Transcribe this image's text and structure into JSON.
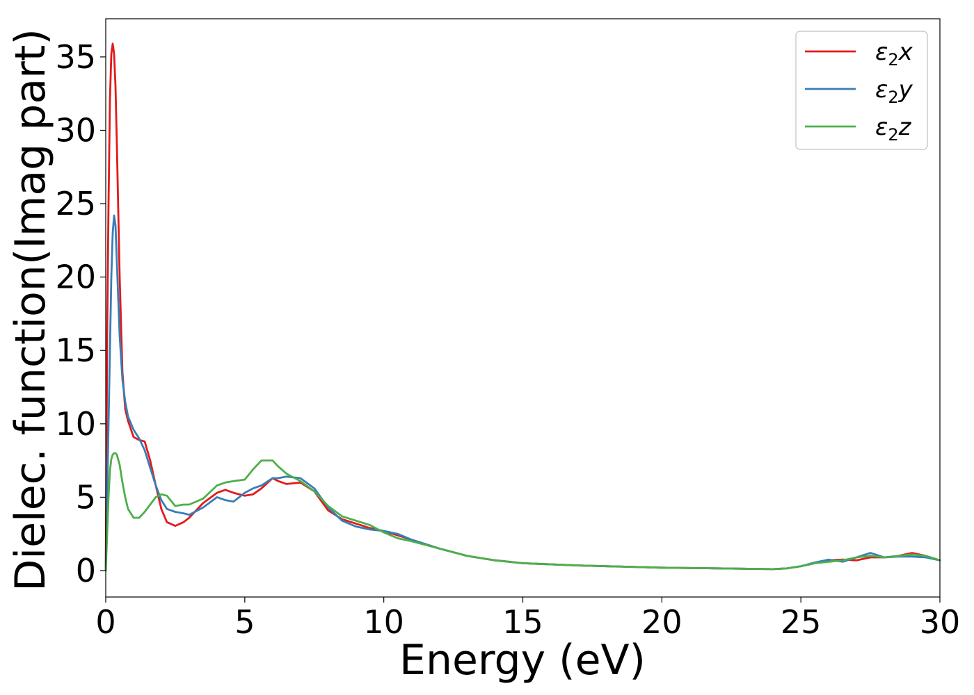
{
  "chart_data": {
    "type": "line",
    "xlabel": "Energy (eV)",
    "ylabel": "Dielec. function(Imag part)",
    "xlim": [
      0,
      30
    ],
    "ylim": [
      -1.8,
      37.6
    ],
    "xticks": [
      0,
      5,
      10,
      15,
      20,
      25,
      30
    ],
    "yticks": [
      0,
      5,
      10,
      15,
      20,
      25,
      30,
      35
    ],
    "grid": false,
    "legend_position": "top-right",
    "series": [
      {
        "name": "ε₂x",
        "legend_base": "ε",
        "legend_sub": "2",
        "legend_suffix": "x",
        "color": "#e41a1c",
        "x": [
          0,
          0.05,
          0.1,
          0.15,
          0.2,
          0.25,
          0.3,
          0.35,
          0.4,
          0.5,
          0.6,
          0.7,
          0.8,
          1.0,
          1.2,
          1.4,
          1.6,
          1.8,
          2.0,
          2.2,
          2.5,
          2.8,
          3.0,
          3.5,
          4.0,
          4.3,
          4.6,
          5.0,
          5.3,
          5.6,
          6.0,
          6.2,
          6.5,
          7.0,
          7.5,
          8.0,
          8.5,
          9.0,
          9.5,
          10.0,
          10.5,
          11.0,
          12.0,
          13.0,
          14.0,
          15.0,
          17.0,
          20.0,
          22.0,
          24.0,
          24.5,
          25.0,
          25.5,
          26.0,
          26.5,
          27.0,
          27.5,
          28.0,
          28.5,
          29.0,
          29.5,
          30.0
        ],
        "values": [
          0,
          15.8,
          25,
          32,
          35.2,
          35.9,
          35.2,
          33,
          29,
          20,
          13.5,
          11,
          10.2,
          9.1,
          8.9,
          8.8,
          7.5,
          5.8,
          4.2,
          3.3,
          3.05,
          3.3,
          3.6,
          4.6,
          5.3,
          5.5,
          5.3,
          5.1,
          5.2,
          5.6,
          6.3,
          6.1,
          5.9,
          6.0,
          5.4,
          4.1,
          3.5,
          3.2,
          2.9,
          2.7,
          2.4,
          2.1,
          1.5,
          1.0,
          0.7,
          0.5,
          0.35,
          0.2,
          0.15,
          0.1,
          0.15,
          0.3,
          0.5,
          0.7,
          0.75,
          0.7,
          0.9,
          0.9,
          1.0,
          1.2,
          1.0,
          0.7
        ]
      },
      {
        "name": "ε₂y",
        "legend_base": "ε",
        "legend_sub": "2",
        "legend_suffix": "y",
        "color": "#377eb8",
        "x": [
          0,
          0.05,
          0.1,
          0.15,
          0.2,
          0.25,
          0.3,
          0.35,
          0.4,
          0.5,
          0.6,
          0.7,
          0.8,
          1.0,
          1.2,
          1.4,
          1.6,
          1.8,
          2.0,
          2.2,
          2.5,
          2.8,
          3.0,
          3.5,
          4.0,
          4.3,
          4.6,
          5.0,
          5.3,
          5.6,
          6.0,
          6.2,
          6.5,
          7.0,
          7.5,
          8.0,
          8.5,
          9.0,
          9.5,
          10.0,
          10.5,
          11.0,
          12.0,
          13.0,
          14.0,
          15.0,
          17.0,
          20.0,
          22.0,
          24.0,
          24.5,
          25.0,
          25.5,
          26.0,
          26.5,
          27.0,
          27.5,
          28.0,
          28.5,
          29.0,
          29.5,
          30.0
        ],
        "values": [
          0,
          5,
          10,
          15,
          20,
          23,
          24.2,
          23.5,
          21,
          16,
          13,
          11.5,
          10.5,
          9.6,
          9.0,
          8.2,
          7.0,
          5.8,
          4.8,
          4.2,
          4.0,
          3.9,
          3.8,
          4.3,
          5.0,
          4.8,
          4.7,
          5.3,
          5.6,
          5.8,
          6.3,
          6.3,
          6.4,
          6.3,
          5.6,
          4.3,
          3.4,
          3.0,
          2.8,
          2.7,
          2.5,
          2.1,
          1.5,
          1.0,
          0.7,
          0.5,
          0.35,
          0.2,
          0.15,
          0.1,
          0.15,
          0.3,
          0.55,
          0.75,
          0.6,
          0.9,
          1.2,
          0.9,
          0.95,
          0.95,
          0.9,
          0.7
        ]
      },
      {
        "name": "ε₂z",
        "legend_base": "ε",
        "legend_sub": "2",
        "legend_suffix": "z",
        "color": "#4daf4a",
        "x": [
          0,
          0.05,
          0.1,
          0.15,
          0.2,
          0.25,
          0.3,
          0.35,
          0.4,
          0.5,
          0.6,
          0.7,
          0.8,
          1.0,
          1.2,
          1.4,
          1.6,
          1.8,
          2.0,
          2.2,
          2.5,
          2.8,
          3.0,
          3.5,
          4.0,
          4.3,
          4.6,
          5.0,
          5.3,
          5.6,
          6.0,
          6.2,
          6.5,
          7.0,
          7.5,
          8.0,
          8.5,
          9.0,
          9.5,
          10.0,
          10.5,
          11.0,
          12.0,
          13.0,
          14.0,
          15.0,
          17.0,
          20.0,
          22.0,
          24.0,
          24.5,
          25.0,
          25.5,
          26.0,
          26.5,
          27.0,
          27.5,
          28.0,
          28.5,
          29.0,
          29.5,
          30.0
        ],
        "values": [
          0,
          2.5,
          5,
          6.8,
          7.6,
          7.9,
          8.0,
          8.0,
          7.9,
          7.2,
          6.0,
          5.0,
          4.2,
          3.6,
          3.6,
          4.0,
          4.5,
          5.0,
          5.2,
          5.1,
          4.4,
          4.5,
          4.5,
          4.9,
          5.8,
          6.0,
          6.1,
          6.2,
          6.9,
          7.5,
          7.5,
          7.1,
          6.6,
          6.1,
          5.4,
          4.4,
          3.7,
          3.4,
          3.1,
          2.6,
          2.2,
          2.0,
          1.5,
          1.0,
          0.7,
          0.5,
          0.35,
          0.2,
          0.15,
          0.1,
          0.15,
          0.3,
          0.5,
          0.6,
          0.7,
          0.9,
          1.0,
          0.9,
          1.0,
          1.1,
          1.0,
          0.7
        ]
      }
    ]
  }
}
